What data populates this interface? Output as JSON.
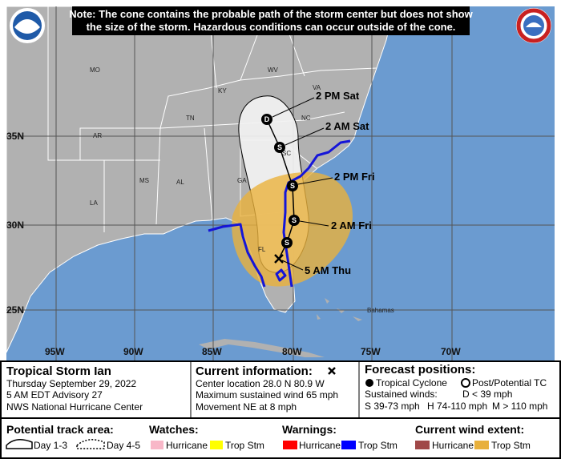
{
  "header": {
    "note": [
      "Note: The cone contains the probable path of the storm center but does not show",
      "the size of the storm. Hazardous conditions can occur outside of the cone."
    ]
  },
  "map": {
    "latitude_labels": [
      "35N",
      "30N",
      "25N"
    ],
    "longitude_labels": [
      "95W",
      "90W",
      "85W",
      "80W",
      "75W",
      "70W"
    ],
    "place_labels": [
      "MO",
      "KY",
      "WV",
      "VA",
      "TN",
      "NC",
      "AR",
      "SC",
      "MS",
      "AL",
      "GA",
      "LA",
      "FL",
      "Bahamas"
    ],
    "forecast_points": [
      "D",
      "S",
      "S",
      "S",
      "S"
    ],
    "time_labels": [
      "2 PM Sat",
      "2 AM Sat",
      "2 PM Fri",
      "2 AM Fri",
      "5 AM Thu"
    ]
  },
  "legend": {
    "storm": {
      "title": "Tropical Storm Ian",
      "date": "Thursday September 29, 2022",
      "advisory": "5 AM EDT Advisory 27",
      "center": "NWS National Hurricane Center"
    },
    "current": {
      "title": "Current information:",
      "lines": [
        "Center location 28.0 N 80.9 W",
        "Maximum sustained wind 65 mph",
        "Movement NE at 8 mph"
      ]
    },
    "forecast": {
      "title": "Forecast positions:",
      "tropical": "Tropical Cyclone",
      "post": "Post/Potential TC",
      "winds_title": "Sustained winds:",
      "d": "D < 39 mph",
      "s": "S 39-73 mph",
      "h": "H 74-110 mph",
      "m": "M > 110 mph"
    },
    "track": {
      "title": "Potential track area:",
      "day13": "Day 1-3",
      "day45": "Day 4-5"
    },
    "watches": {
      "title": "Watches:",
      "hurricane": "Hurricane",
      "trop": "Trop Stm"
    },
    "warnings": {
      "title": "Warnings:",
      "hurricane": "Hurricane",
      "trop": "Trop Stm"
    },
    "wind": {
      "title": "Current wind extent:",
      "hurricane": "Hurricane",
      "trop": "Trop Stm"
    }
  }
}
